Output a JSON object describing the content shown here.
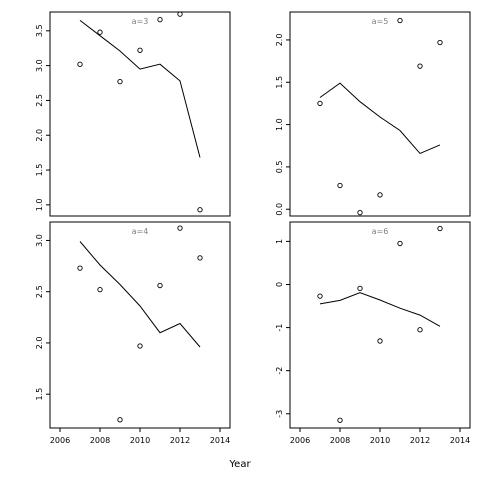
{
  "colors": {
    "points": "#000000",
    "line": "#000000",
    "panel_label": "#7f7f7f",
    "frame": "#000000"
  },
  "chart_data": {
    "type": "scatter",
    "layout": "2x2 panels",
    "xlabel": "Year",
    "xlim": [
      2005.5,
      2014.5
    ],
    "xticks": [
      2006,
      2008,
      2010,
      2012,
      2014
    ],
    "xtick_labels": [
      "2006",
      "2008",
      "2010",
      "2012",
      "2014"
    ],
    "panels": [
      {
        "label": "a=3",
        "ylim": [
          0.84,
          3.77
        ],
        "yticks": [
          1.0,
          1.5,
          2.0,
          2.5,
          3.0,
          3.5
        ],
        "ytick_labels": [
          "1.0",
          "1.5",
          "2.0",
          "2.5",
          "3.0",
          "3.5"
        ],
        "points": [
          [
            2007,
            3.02
          ],
          [
            2008,
            3.48
          ],
          [
            2009,
            2.77
          ],
          [
            2010,
            3.22
          ],
          [
            2011,
            3.66
          ],
          [
            2012,
            3.74
          ],
          [
            2013,
            0.93
          ]
        ],
        "line": [
          [
            2007,
            3.65
          ],
          [
            2008,
            3.43
          ],
          [
            2009,
            3.21
          ],
          [
            2010,
            2.95
          ],
          [
            2011,
            3.02
          ],
          [
            2012,
            2.78
          ],
          [
            2013,
            1.68
          ]
        ]
      },
      {
        "label": "a=5",
        "ylim": [
          -0.08,
          2.33
        ],
        "yticks": [
          0.0,
          0.5,
          1.0,
          1.5,
          2.0
        ],
        "ytick_labels": [
          "0.0",
          "0.5",
          "1.0",
          "1.5",
          "2.0"
        ],
        "points": [
          [
            2007,
            1.25
          ],
          [
            2008,
            0.28
          ],
          [
            2009,
            -0.04
          ],
          [
            2010,
            0.17
          ],
          [
            2011,
            2.23
          ],
          [
            2012,
            1.69
          ],
          [
            2013,
            1.97
          ]
        ],
        "line": [
          [
            2007,
            1.32
          ],
          [
            2008,
            1.49
          ],
          [
            2009,
            1.27
          ],
          [
            2010,
            1.09
          ],
          [
            2011,
            0.93
          ],
          [
            2012,
            0.66
          ],
          [
            2013,
            0.76
          ]
        ]
      },
      {
        "label": "a=4",
        "ylim": [
          1.17,
          3.18
        ],
        "yticks": [
          1.5,
          2.0,
          2.5,
          3.0
        ],
        "ytick_labels": [
          "1.5",
          "2.0",
          "2.5",
          "3.0"
        ],
        "points": [
          [
            2007,
            2.73
          ],
          [
            2008,
            2.52
          ],
          [
            2009,
            1.25
          ],
          [
            2010,
            1.97
          ],
          [
            2011,
            2.56
          ],
          [
            2012,
            3.12
          ],
          [
            2013,
            2.83
          ]
        ],
        "line": [
          [
            2007,
            2.99
          ],
          [
            2008,
            2.76
          ],
          [
            2009,
            2.57
          ],
          [
            2010,
            2.36
          ],
          [
            2011,
            2.1
          ],
          [
            2012,
            2.19
          ],
          [
            2013,
            1.96
          ]
        ]
      },
      {
        "label": "a=6",
        "ylim": [
          -3.33,
          1.45
        ],
        "yticks": [
          -3,
          -2,
          -1,
          0,
          1
        ],
        "ytick_labels": [
          "-3",
          "-2",
          "-1",
          "0",
          "1"
        ],
        "points": [
          [
            2007,
            -0.27
          ],
          [
            2008,
            -3.15
          ],
          [
            2009,
            -0.09
          ],
          [
            2010,
            -1.31
          ],
          [
            2011,
            0.95
          ],
          [
            2012,
            -1.05
          ],
          [
            2013,
            1.3
          ]
        ],
        "line": [
          [
            2007,
            -0.45
          ],
          [
            2008,
            -0.37
          ],
          [
            2009,
            -0.19
          ],
          [
            2010,
            -0.36
          ],
          [
            2011,
            -0.55
          ],
          [
            2012,
            -0.71
          ],
          [
            2013,
            -0.97
          ]
        ]
      }
    ]
  }
}
